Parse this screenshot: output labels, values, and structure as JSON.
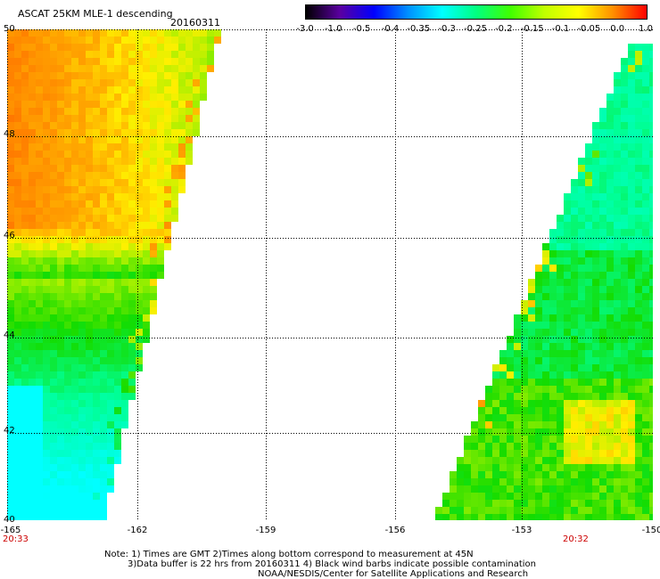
{
  "header": {
    "title": "ASCAT 25KM MLE-1 descending",
    "date": "20160311"
  },
  "colorbar": {
    "ticks": [
      "-3.0",
      "-1.0",
      "-0.5",
      "-0.4",
      "-0.35",
      "-0.3",
      "-0.25",
      "-0.2",
      "-0.15",
      "-0.1",
      "-0.05",
      "0.0",
      "1.0"
    ],
    "colors": [
      "#000000",
      "#5a00a0",
      "#0000ff",
      "#0090ff",
      "#00ffff",
      "#00ff80",
      "#40ff00",
      "#c0ff00",
      "#ffff00",
      "#ff9000",
      "#ff0000"
    ]
  },
  "map": {
    "lat_labels": [
      "50",
      "48",
      "46",
      "44",
      "42",
      "40"
    ],
    "lon_labels": [
      "-165",
      "-162",
      "-159",
      "-156",
      "-153",
      "-150"
    ],
    "time_left": "20:33",
    "time_right": "20:32",
    "lat_range": [
      40,
      50
    ],
    "lon_range": [
      -165,
      -150
    ]
  },
  "footer": {
    "line1": "Note: 1) Times are GMT 2)Times along bottom correspond to measurement at 45N",
    "line2": "3)Data buffer is 22 hrs from 20160311 4) Black wind barbs indicate possible contamination",
    "line3": "NOAA/NESDIS/Center for Satellite Applications and Research"
  }
}
